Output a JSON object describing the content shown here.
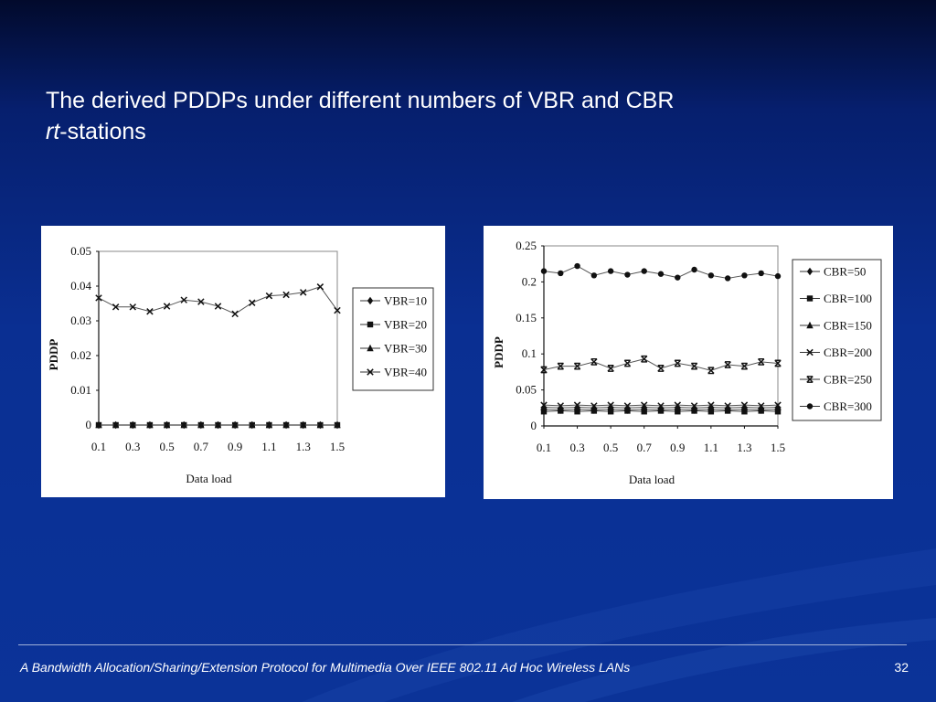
{
  "slide": {
    "title_line1": "The derived PDDPs under different numbers of VBR and CBR",
    "title_italic": "rt",
    "title_line2_rest": "-stations",
    "footer_text": "A Bandwidth Allocation/Sharing/Extension Protocol for Multimedia Over IEEE 802.11 Ad Hoc Wireless LANs",
    "page_number": "32",
    "colors": {
      "background": "#0a3196",
      "text": "#ffffff"
    }
  },
  "chart_data": [
    {
      "type": "line",
      "xlabel": "Data load",
      "ylabel": "PDDP",
      "x": [
        0.1,
        0.2,
        0.3,
        0.4,
        0.5,
        0.6,
        0.7,
        0.8,
        0.9,
        1.0,
        1.1,
        1.2,
        1.3,
        1.4,
        1.5
      ],
      "xticks": [
        "0.1",
        "0.3",
        "0.5",
        "0.7",
        "0.9",
        "1.1",
        "1.3",
        "1.5"
      ],
      "yticks": [
        "0",
        "0.01",
        "0.02",
        "0.03",
        "0.04",
        "0.05"
      ],
      "ylim": [
        0,
        0.05
      ],
      "legend_position": "right",
      "series": [
        {
          "name": "VBR=10",
          "marker": "diamond",
          "values": [
            0,
            0,
            0,
            0,
            0,
            0,
            0,
            0,
            0,
            0,
            0,
            0,
            0,
            0,
            0
          ]
        },
        {
          "name": "VBR=20",
          "marker": "square",
          "values": [
            0,
            0,
            0,
            0,
            0,
            0,
            0,
            0,
            0,
            0,
            0,
            0,
            0,
            0,
            0
          ]
        },
        {
          "name": "VBR=30",
          "marker": "triangle",
          "values": [
            0,
            0,
            0,
            0,
            0,
            0,
            0,
            0,
            0,
            0,
            0,
            0,
            0,
            0,
            0
          ]
        },
        {
          "name": "VBR=40",
          "marker": "x",
          "values": [
            0.0366,
            0.034,
            0.034,
            0.0327,
            0.0342,
            0.036,
            0.0355,
            0.0342,
            0.032,
            0.0352,
            0.0372,
            0.0375,
            0.0382,
            0.0398,
            0.033
          ]
        }
      ]
    },
    {
      "type": "line",
      "xlabel": "Data load",
      "ylabel": "PDDP",
      "x": [
        0.1,
        0.2,
        0.3,
        0.4,
        0.5,
        0.6,
        0.7,
        0.8,
        0.9,
        1.0,
        1.1,
        1.2,
        1.3,
        1.4,
        1.5
      ],
      "xticks": [
        "0.1",
        "0.3",
        "0.5",
        "0.7",
        "0.9",
        "1.1",
        "1.3",
        "1.5"
      ],
      "yticks": [
        "0",
        "0.05",
        "0.1",
        "0.15",
        "0.2",
        "0.25"
      ],
      "ylim": [
        0,
        0.25
      ],
      "legend_position": "right",
      "series": [
        {
          "name": "CBR=50",
          "marker": "diamond",
          "values": [
            0.023,
            0.022,
            0.023,
            0.022,
            0.023,
            0.022,
            0.023,
            0.022,
            0.023,
            0.022,
            0.023,
            0.022,
            0.023,
            0.022,
            0.023
          ]
        },
        {
          "name": "CBR=100",
          "marker": "square",
          "values": [
            0.02,
            0.021,
            0.02,
            0.021,
            0.02,
            0.021,
            0.02,
            0.021,
            0.02,
            0.021,
            0.02,
            0.021,
            0.02,
            0.021,
            0.02
          ]
        },
        {
          "name": "CBR=150",
          "marker": "triangle",
          "values": [
            0.026,
            0.025,
            0.026,
            0.025,
            0.026,
            0.025,
            0.026,
            0.025,
            0.026,
            0.025,
            0.026,
            0.025,
            0.026,
            0.025,
            0.026
          ]
        },
        {
          "name": "CBR=200",
          "marker": "x",
          "values": [
            0.029,
            0.028,
            0.029,
            0.028,
            0.029,
            0.028,
            0.029,
            0.028,
            0.029,
            0.028,
            0.029,
            0.028,
            0.029,
            0.028,
            0.029
          ]
        },
        {
          "name": "CBR=250",
          "marker": "xbar",
          "values": [
            0.078,
            0.083,
            0.083,
            0.089,
            0.08,
            0.087,
            0.093,
            0.08,
            0.087,
            0.083,
            0.077,
            0.085,
            0.083,
            0.089,
            0.087
          ]
        },
        {
          "name": "CBR=300",
          "marker": "circle",
          "values": [
            0.215,
            0.212,
            0.222,
            0.209,
            0.215,
            0.21,
            0.215,
            0.211,
            0.206,
            0.217,
            0.209,
            0.205,
            0.209,
            0.212,
            0.208
          ]
        }
      ]
    }
  ]
}
